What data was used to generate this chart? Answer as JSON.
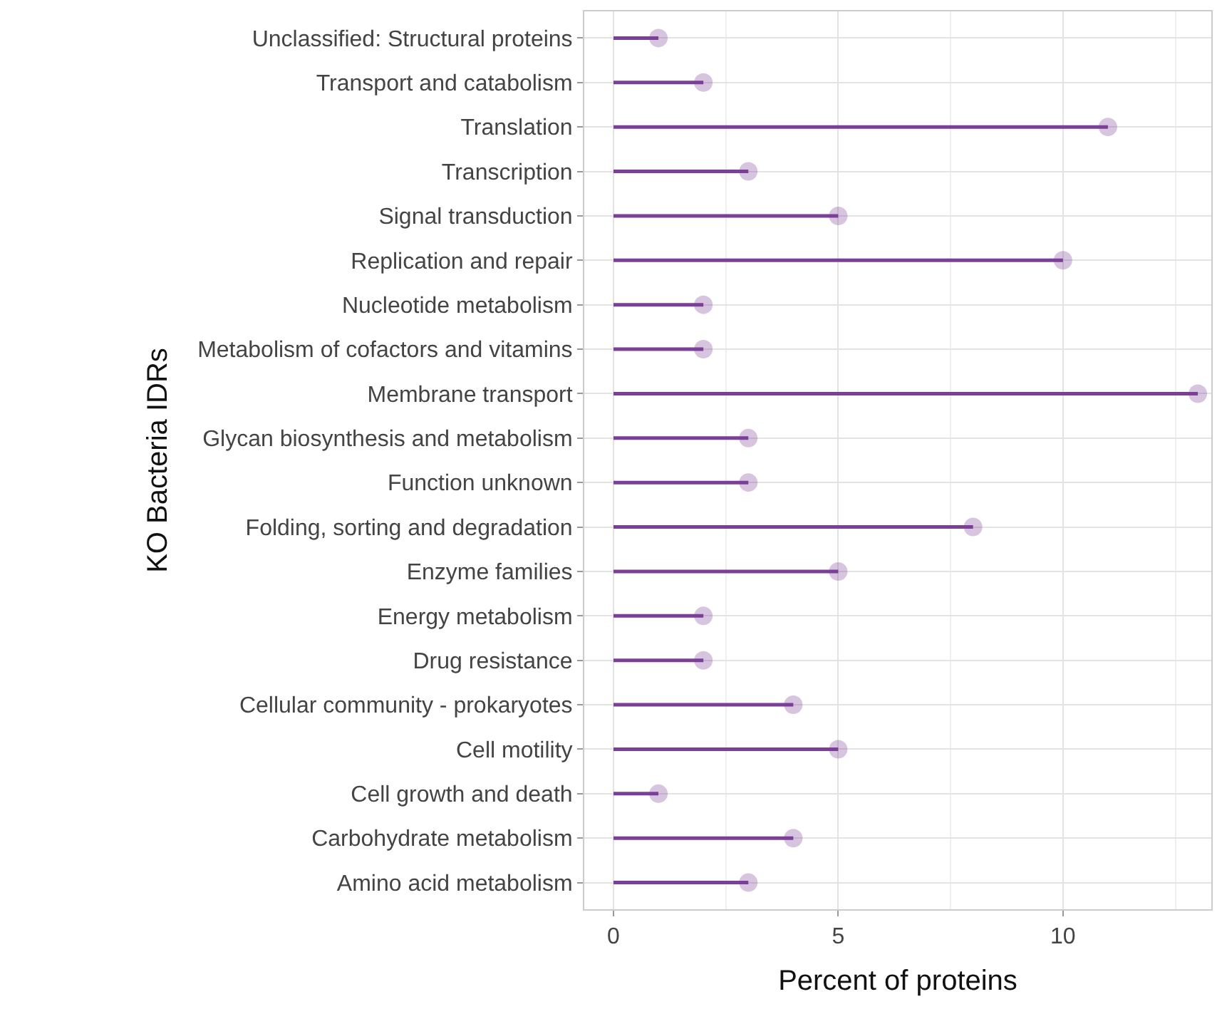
{
  "chart_data": {
    "type": "lollipop",
    "orientation": "horizontal",
    "xlabel": "Percent of proteins",
    "ylabel": "KO Bacteria IDRs",
    "categories": [
      "Unclassified: Structural proteins",
      "Transport and catabolism",
      "Translation",
      "Transcription",
      "Signal transduction",
      "Replication and repair",
      "Nucleotide metabolism",
      "Metabolism of cofactors and vitamins",
      "Membrane transport",
      "Glycan biosynthesis and metabolism",
      "Function unknown",
      "Folding, sorting and degradation",
      "Enzyme families",
      "Energy metabolism",
      "Drug resistance",
      "Cellular community - prokaryotes",
      "Cell motility",
      "Cell growth and death",
      "Carbohydrate metabolism",
      "Amino acid metabolism"
    ],
    "values": [
      1,
      2,
      11,
      3,
      5,
      10,
      2,
      2,
      13,
      3,
      3,
      8,
      5,
      2,
      2,
      4,
      5,
      1,
      4,
      3
    ],
    "color": "#7b3f98",
    "marker": "circle",
    "xlim": [
      -0.65,
      13.3
    ],
    "xticks": [
      0,
      5,
      10
    ],
    "grid": true
  }
}
